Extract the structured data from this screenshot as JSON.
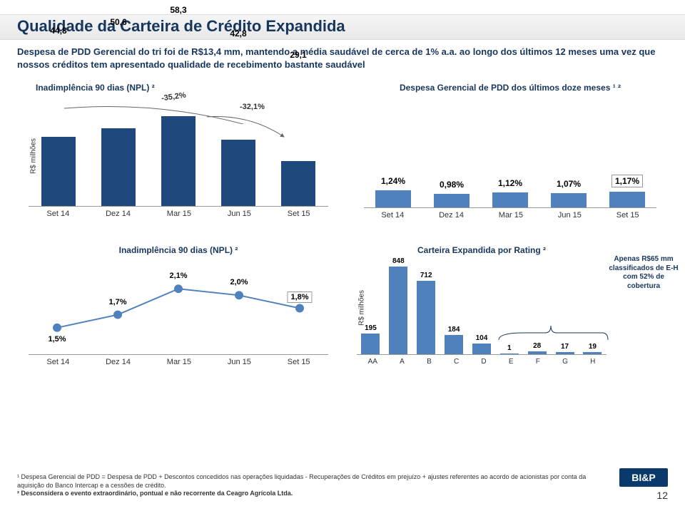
{
  "pageTitle": "Qualidade da Carteira de Crédito Expandida",
  "subtitle": "Despesa de PDD Gerencial do tri foi de R$13,4 mm, mantendo a média saudável de cerca de 1% a.a. ao longo dos últimos 12 meses uma vez que nossos créditos tem apresentado qualidade de recebimento bastante saudável",
  "chart1": {
    "title": "Inadimplência 90 dias  (NPL) ²",
    "callout1": "-35,2%",
    "callout2": "-32,1%",
    "ylabel": "R$ milhões",
    "categories": [
      "Set 14",
      "Dez 14",
      "Mar 15",
      "Jun 15",
      "Set 15"
    ],
    "values": [
      44.8,
      50.6,
      58.3,
      42.8,
      29.1
    ],
    "labels": [
      "44,8",
      "50,6",
      "58,3",
      "42,8",
      "29,1"
    ],
    "bar_color": "#1f497d",
    "ylim": [
      0,
      65
    ]
  },
  "chart2": {
    "title": "Despesa Gerencial de PDD dos últimos doze meses ¹ ²",
    "categories": [
      "Set 14",
      "Dez 14",
      "Mar 15",
      "Jun 15",
      "Set 15"
    ],
    "values": [
      1.24,
      0.98,
      1.12,
      1.07,
      1.17
    ],
    "labels": [
      "1,24%",
      "0,98%",
      "1,12%",
      "1,07%",
      "1,17%"
    ],
    "box_last": true,
    "color_bar": "#4f81bd",
    "ylim": [
      0,
      1.5
    ]
  },
  "chart3": {
    "title": "Inadimplência 90 dias  (NPL) ²",
    "categories": [
      "Set 14",
      "Dez 14",
      "Mar 15",
      "Jun 15",
      "Set 15"
    ],
    "values": [
      1.5,
      1.7,
      2.1,
      2.0,
      1.8
    ],
    "labels": [
      "1,5%",
      "1,7%",
      "2,1%",
      "2,0%",
      "1,8%"
    ],
    "box_last": true,
    "line_color": "#4f81bd",
    "marker_color": "#4f81bd",
    "ylim": [
      1.2,
      2.4
    ]
  },
  "chart4": {
    "title": "Carteira Expandida por Rating ²",
    "ylabel": "R$ milhões",
    "categories": [
      "AA",
      "A",
      "B",
      "C",
      "D",
      "E",
      "F",
      "G",
      "H"
    ],
    "values": [
      195,
      848,
      712,
      184,
      104,
      1,
      28,
      17,
      19
    ],
    "labels": [
      "195",
      "848",
      "712",
      "184",
      "104",
      "1",
      "28",
      "17",
      "19"
    ],
    "bar_color": "#4f81bd",
    "ylim": [
      0,
      900
    ],
    "side_note": "Apenas R$65 mm classificados de E-H com 52% de cobertura"
  },
  "footnotes": {
    "f1": "¹ Despesa Gerencial de PDD = Despesa de PDD + Descontos concedidos nas operações liquidadas - Recuperações de Créditos em prejuízo + ajustes referentes ao acordo de acionistas por conta da aquisição do Banco Intercap e a cessões de crédito.",
    "f2": "² Desconsidera o evento extraordinário, pontual e não recorrente da Ceagro Agrícola Ltda."
  },
  "logo": "BI&P",
  "pageNumber": "12"
}
